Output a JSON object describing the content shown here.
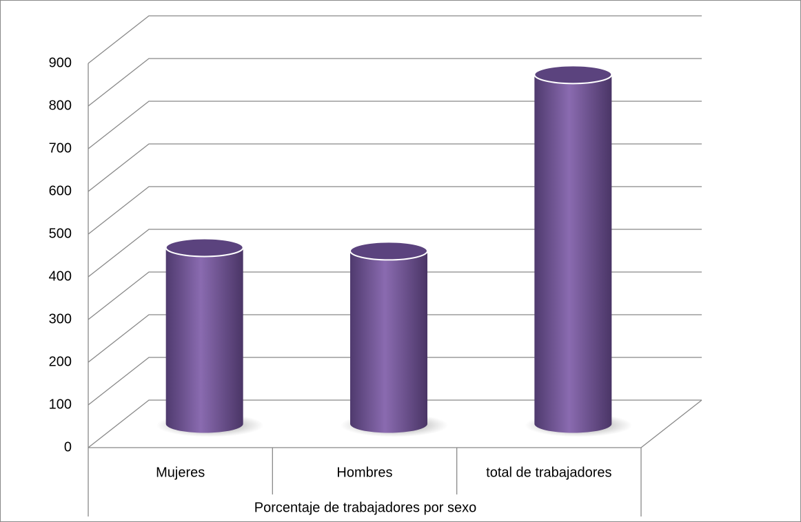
{
  "chart_data": {
    "type": "bar3d",
    "categories": [
      "Mujeres",
      "Hombres",
      "total de trabajadores"
    ],
    "group_label": "Porcentaje de trabajadores por sexo",
    "values": [
      413,
      405,
      818
    ],
    "color": "#8064a2",
    "ylim": [
      0,
      900
    ],
    "yticks": [
      0,
      100,
      200,
      300,
      400,
      500,
      600,
      700,
      800,
      900
    ],
    "grid": true
  }
}
